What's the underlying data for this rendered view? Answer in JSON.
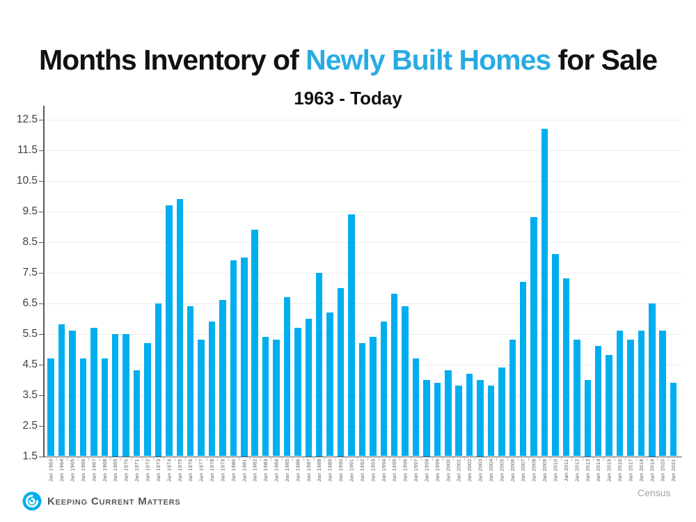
{
  "title": {
    "prefix": "Months Inventory of ",
    "highlight": "Newly Built Homes",
    "suffix": " for Sale",
    "highlight_color": "#29ABE2"
  },
  "subtitle": "1963 - Today",
  "source_label": "Census",
  "footer": {
    "brand": "Keeping Current Matters"
  },
  "chart_data": {
    "type": "bar",
    "title": "Months Inventory of Newly Built Homes for Sale",
    "subtitle": "1963 - Today",
    "xlabel": "",
    "ylabel": "",
    "ylim": [
      1.5,
      12.5
    ],
    "ytick_step": 1.0,
    "yticks": [
      1.5,
      2.5,
      3.5,
      4.5,
      5.5,
      6.5,
      7.5,
      8.5,
      9.5,
      10.5,
      11.5,
      12.5
    ],
    "grid": true,
    "legend": false,
    "bar_color": "#00AEEF",
    "xlabel_rotation_deg": -90,
    "categories": [
      "Jan 1963",
      "Jan 1964",
      "Jan 1965",
      "Jan 1966",
      "Jan 1967",
      "Jan 1968",
      "Jan 1969",
      "Jan 1970",
      "Jan 1971",
      "Jan 1972",
      "Jan 1973",
      "Jan 1974",
      "Jan 1975",
      "Jan 1976",
      "Jan 1977",
      "Jan 1978",
      "Jan 1979",
      "Jan 1980",
      "Jan 1981",
      "Jan 1982",
      "Jan 1983",
      "Jan 1984",
      "Jan 1985",
      "Jan 1986",
      "Jan 1987",
      "Jan 1988",
      "Jan 1989",
      "Jan 1990",
      "Jan 1991",
      "Jan 1992",
      "Jan 1993",
      "Jan 1994",
      "Jan 1995",
      "Jan 1996",
      "Jan 1997",
      "Jan 1998",
      "Jan 1999",
      "Jan 2000",
      "Jan 2001",
      "Jan 2002",
      "Jan 2003",
      "Jan 2004",
      "Jan 2005",
      "Jan 2006",
      "Jan 2007",
      "Jan 2008",
      "Jan 2009",
      "Jan 2010",
      "Jan 2011",
      "Jan 2012",
      "Jan 2013",
      "Jan 2014",
      "Jan 2015",
      "Jan 2016",
      "Jan 2017",
      "Jan 2018",
      "Jan 2019",
      "Jan 2020",
      "Jan 2021"
    ],
    "values": [
      4.7,
      5.8,
      5.6,
      4.7,
      5.7,
      4.7,
      5.5,
      5.5,
      4.3,
      5.2,
      6.5,
      9.7,
      9.9,
      6.4,
      5.3,
      5.9,
      6.6,
      7.9,
      8.0,
      8.9,
      5.4,
      5.3,
      6.7,
      5.7,
      6.0,
      7.5,
      6.2,
      7.0,
      9.4,
      5.2,
      5.4,
      5.9,
      6.8,
      6.4,
      4.7,
      4.0,
      3.9,
      4.3,
      3.8,
      4.2,
      4.0,
      3.8,
      4.4,
      5.3,
      7.2,
      9.3,
      12.2,
      8.1,
      7.3,
      5.3,
      4.0,
      5.1,
      4.8,
      5.6,
      5.3,
      5.6,
      6.5,
      5.6,
      3.9
    ]
  }
}
